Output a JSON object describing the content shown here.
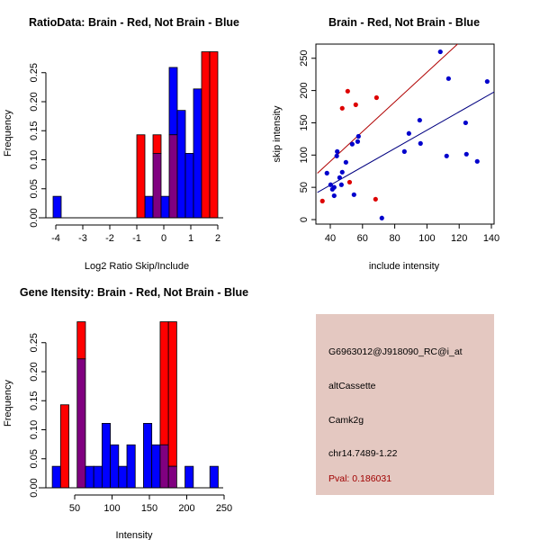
{
  "chart_data": [
    {
      "type": "bar",
      "subtype": "overlaid-histogram",
      "title": "RatioData: Brain - Red, Not Brain - Blue",
      "xlabel": "Log2 Ratio Skip/Include",
      "ylabel": "Frequency",
      "xlim": [
        -4,
        2
      ],
      "ylim": [
        0,
        0.25
      ],
      "xticks": [
        -4,
        -3,
        -2,
        -1,
        0,
        1,
        2
      ],
      "yticks": [
        "0.00",
        "0.05",
        "0.10",
        "0.15",
        "0.20",
        "0.25"
      ],
      "bin_width": 0.3,
      "series": [
        {
          "name": "Brain",
          "color": "#ff0000",
          "bins": [
            {
              "start": -1.0,
              "value": 0.143
            },
            {
              "start": -0.4,
              "value": 0.143
            },
            {
              "start": 0.2,
              "value": 0.143
            },
            {
              "start": 1.4,
              "value": 0.286
            },
            {
              "start": 1.7,
              "value": 0.286
            }
          ]
        },
        {
          "name": "Not Brain",
          "color": "#0000ff",
          "bins": [
            {
              "start": -4.1,
              "value": 0.037
            },
            {
              "start": -0.7,
              "value": 0.037
            },
            {
              "start": -0.4,
              "value": 0.111
            },
            {
              "start": -0.1,
              "value": 0.037
            },
            {
              "start": 0.2,
              "value": 0.259
            },
            {
              "start": 0.5,
              "value": 0.185
            },
            {
              "start": 0.8,
              "value": 0.111
            },
            {
              "start": 1.1,
              "value": 0.222
            }
          ]
        }
      ],
      "overlap_color": "#800080"
    },
    {
      "type": "scatter",
      "title": "Brain - Red, Not Brain - Blue",
      "xlabel": "include intensity",
      "ylabel": "skip intensity",
      "xlim": [
        32,
        142
      ],
      "ylim": [
        -7,
        272
      ],
      "xticks": [
        40,
        60,
        80,
        100,
        120,
        140
      ],
      "yticks": [
        0,
        50,
        100,
        150,
        200,
        250
      ],
      "series": [
        {
          "name": "Brain",
          "color": "#dd0000",
          "points": [
            [
              50.8,
              199
            ],
            [
              68.7,
              189
            ],
            [
              47.4,
              172.5
            ],
            [
              55.8,
              178
            ],
            [
              52,
              58
            ],
            [
              68.1,
              31.6
            ],
            [
              35.1,
              28.8
            ]
          ],
          "fit": {
            "slope": 2.3,
            "intercept": -1.7,
            "color": "#b00000"
          }
        },
        {
          "name": "Not Brain",
          "color": "#0000cc",
          "points": [
            [
              108.3,
              260
            ],
            [
              113.4,
              218.5
            ],
            [
              137.4,
              214
            ],
            [
              95.5,
              154
            ],
            [
              124,
              150
            ],
            [
              88.8,
              133.5
            ],
            [
              96,
              118
            ],
            [
              57.5,
              129
            ],
            [
              57,
              121
            ],
            [
              53.6,
              117
            ],
            [
              44.3,
              105.5
            ],
            [
              44,
              98.6
            ],
            [
              86,
              105.5
            ],
            [
              112.2,
              98.6
            ],
            [
              124.5,
              101.4
            ],
            [
              131.2,
              90.2
            ],
            [
              49.7,
              88.8
            ],
            [
              37.9,
              72
            ],
            [
              47.4,
              73.5
            ],
            [
              45.8,
              65
            ],
            [
              40.2,
              54
            ],
            [
              46.9,
              54
            ],
            [
              41.3,
              47
            ],
            [
              42.4,
              50
            ],
            [
              42.4,
              37
            ],
            [
              54.7,
              38.6
            ],
            [
              72,
              2.4
            ]
          ],
          "fit": {
            "slope": 1.42,
            "intercept": -3.4,
            "color": "#000080"
          }
        }
      ]
    },
    {
      "type": "bar",
      "subtype": "overlaid-histogram",
      "title": "Gene Itensity: Brain - Red, Not Brain - Blue",
      "xlabel": "Intensity",
      "ylabel": "Frequency",
      "xlim": [
        50,
        250
      ],
      "ylim": [
        0,
        0.25
      ],
      "xticks": [
        50,
        100,
        150,
        200,
        250
      ],
      "yticks": [
        "0.00",
        "0.05",
        "0.10",
        "0.15",
        "0.20",
        "0.25"
      ],
      "bin_width": 11.1,
      "series": [
        {
          "name": "Brain",
          "color": "#ff0000",
          "bins": [
            {
              "start": 31.1,
              "value": 0.143
            },
            {
              "start": 53.3,
              "value": 0.286
            },
            {
              "start": 164.4,
              "value": 0.286
            },
            {
              "start": 175.5,
              "value": 0.286
            }
          ]
        },
        {
          "name": "Not Brain",
          "color": "#0000ff",
          "bins": [
            {
              "start": 20.0,
              "value": 0.037
            },
            {
              "start": 53.3,
              "value": 0.222
            },
            {
              "start": 64.4,
              "value": 0.037
            },
            {
              "start": 75.5,
              "value": 0.037
            },
            {
              "start": 86.6,
              "value": 0.111
            },
            {
              "start": 97.7,
              "value": 0.074
            },
            {
              "start": 108.8,
              "value": 0.037
            },
            {
              "start": 119.9,
              "value": 0.074
            },
            {
              "start": 142.1,
              "value": 0.111
            },
            {
              "start": 153.2,
              "value": 0.074
            },
            {
              "start": 164.4,
              "value": 0.074
            },
            {
              "start": 175.5,
              "value": 0.037
            },
            {
              "start": 197.7,
              "value": 0.037
            },
            {
              "start": 231.0,
              "value": 0.037
            }
          ]
        }
      ],
      "overlap_color": "#800080"
    }
  ],
  "info": {
    "probe_id": "G6963012@J918090_RC@i_at",
    "event_type": "altCassette",
    "gene": "Camk2g",
    "location": "chr14.7489-1.22",
    "pval": "Pval: 0.186031",
    "panel_color": "#e4c8c1",
    "pval_color": "#a00000"
  }
}
